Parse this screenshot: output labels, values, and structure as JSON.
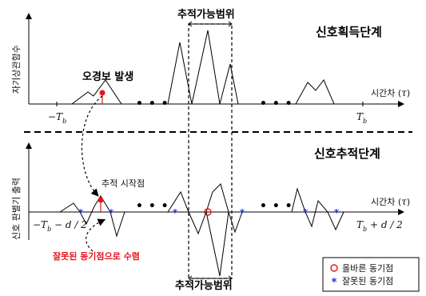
{
  "top_panel": {
    "title": "신호획득단계",
    "y_label": "자기상관함수",
    "x_label": "시간차",
    "tau": "τ",
    "tick_left_base": "−T",
    "tick_left_sub": "b",
    "tick_right_base": "T",
    "tick_right_sub": "b",
    "false_alarm": "오경보 발생",
    "range_label": "추적가능범위",
    "ellipsis": "• • •"
  },
  "bottom_panel": {
    "title": "신호추적단계",
    "y_label": "신호 판별기 출력",
    "x_label": "시간차",
    "tau": "τ",
    "tick_left_pre": "−T",
    "tick_left_sub": "b",
    "tick_left_post": " − d / 2",
    "tick_right_pre": "T",
    "tick_right_sub": "b",
    "tick_right_post": " + d / 2",
    "start_point": "추적 시작점",
    "converge": "잘못된 동기점으로 수렴",
    "range_label": "추적가능범위",
    "ellipsis": "• • •"
  },
  "legend": {
    "correct": "올바른 동기점",
    "wrong": "잘못된 동기점"
  },
  "colors": {
    "accent_red": "#e8141c",
    "marker_blue": "#1d2fd6",
    "line": "#000000"
  }
}
